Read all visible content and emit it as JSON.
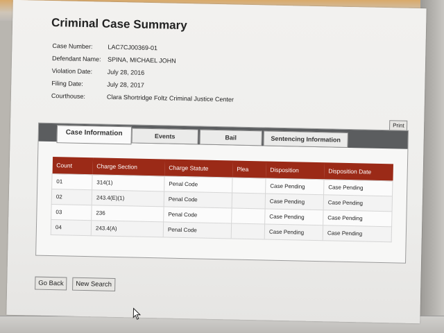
{
  "page": {
    "title": "Criminal Case Summary",
    "print_label": "Print"
  },
  "summary": [
    {
      "label": "Case Number:",
      "value": "LAC7CJ00369-01"
    },
    {
      "label": "Defendant Name:",
      "value": "SPINA, MICHAEL JOHN"
    },
    {
      "label": "Violation Date:",
      "value": "July 28, 2016"
    },
    {
      "label": "Filing Date:",
      "value": "July 28, 2017"
    },
    {
      "label": "Courthouse:",
      "value": "Clara Shortridge Foltz Criminal Justice Center"
    }
  ],
  "tabs": [
    {
      "label": "Case Information",
      "active": true
    },
    {
      "label": "Events",
      "active": false
    },
    {
      "label": "Bail",
      "active": false
    },
    {
      "label": "Sentencing Information",
      "active": false
    }
  ],
  "table": {
    "headers": [
      "Count",
      "Charge Section",
      "Charge Statute",
      "Plea",
      "Disposition",
      "Disposition Date"
    ],
    "rows": [
      [
        "01",
        "314(1)",
        "Penal Code",
        "",
        "Case Pending",
        "Case Pending"
      ],
      [
        "02",
        "243.4(E)(1)",
        "Penal Code",
        "",
        "Case Pending",
        "Case Pending"
      ],
      [
        "03",
        "236",
        "Penal Code",
        "",
        "Case Pending",
        "Case Pending"
      ],
      [
        "04",
        "243.4(A)",
        "Penal Code",
        "",
        "Case Pending",
        "Case Pending"
      ]
    ]
  },
  "actions": {
    "go_back": "Go Back",
    "new_search": "New Search"
  },
  "colors": {
    "table_header": "#9b2a17",
    "tab_bar": "#5b5d5f"
  }
}
